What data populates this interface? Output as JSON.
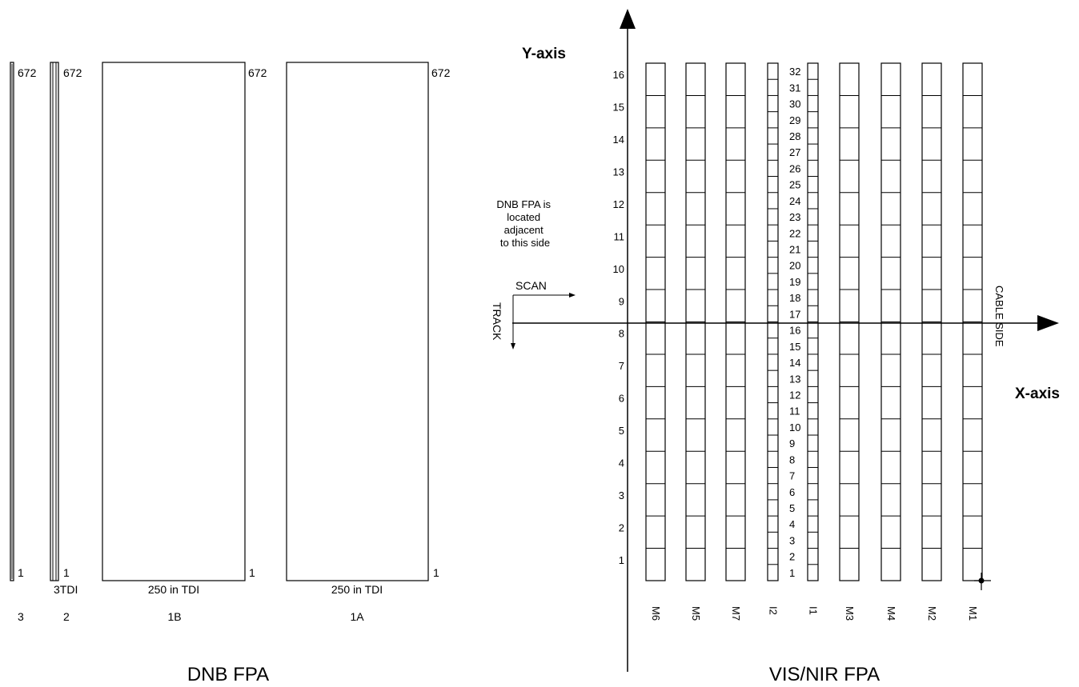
{
  "dnb": {
    "title": "DNB FPA",
    "stages": [
      {
        "id": "3",
        "top_label": "672",
        "bottom_label": "1",
        "tdi_label": "",
        "name": "3"
      },
      {
        "id": "2",
        "top_label": "672",
        "bottom_label": "1",
        "tdi_label": "3TDI",
        "name": "2"
      },
      {
        "id": "1B",
        "top_label": "672",
        "bottom_label": "1",
        "tdi_label": "250 in TDI",
        "name": "1B"
      },
      {
        "id": "1A",
        "top_label": "672",
        "bottom_label": "1",
        "tdi_label": "250 in TDI",
        "name": "1A"
      }
    ]
  },
  "vis": {
    "title": "VIS/NIR FPA",
    "y_axis_label": "Y-axis",
    "x_axis_label": "X-axis",
    "row_numbers": [
      "1",
      "2",
      "3",
      "4",
      "5",
      "6",
      "7",
      "8",
      "9",
      "10",
      "11",
      "12",
      "13",
      "14",
      "15",
      "16"
    ],
    "imaging_row_numbers": [
      "1",
      "2",
      "3",
      "4",
      "5",
      "6",
      "7",
      "8",
      "9",
      "10",
      "11",
      "12",
      "13",
      "14",
      "15",
      "16",
      "17",
      "18",
      "19",
      "20",
      "21",
      "22",
      "23",
      "24",
      "25",
      "26",
      "27",
      "28",
      "29",
      "30",
      "31",
      "32"
    ],
    "bands": [
      {
        "name": "M6",
        "type": "M"
      },
      {
        "name": "M5",
        "type": "M"
      },
      {
        "name": "M7",
        "type": "M"
      },
      {
        "name": "I2",
        "type": "I"
      },
      {
        "name": "I1",
        "type": "I"
      },
      {
        "name": "M3",
        "type": "M"
      },
      {
        "name": "M4",
        "type": "M"
      },
      {
        "name": "M2",
        "type": "M"
      },
      {
        "name": "M1",
        "type": "M"
      }
    ],
    "note_lines": [
      "DNB FPA is",
      "located",
      "adjacent",
      "to this side"
    ],
    "scan_label": "SCAN",
    "track_label": "TRACK",
    "cable_side_label": "CABLE SIDE"
  }
}
